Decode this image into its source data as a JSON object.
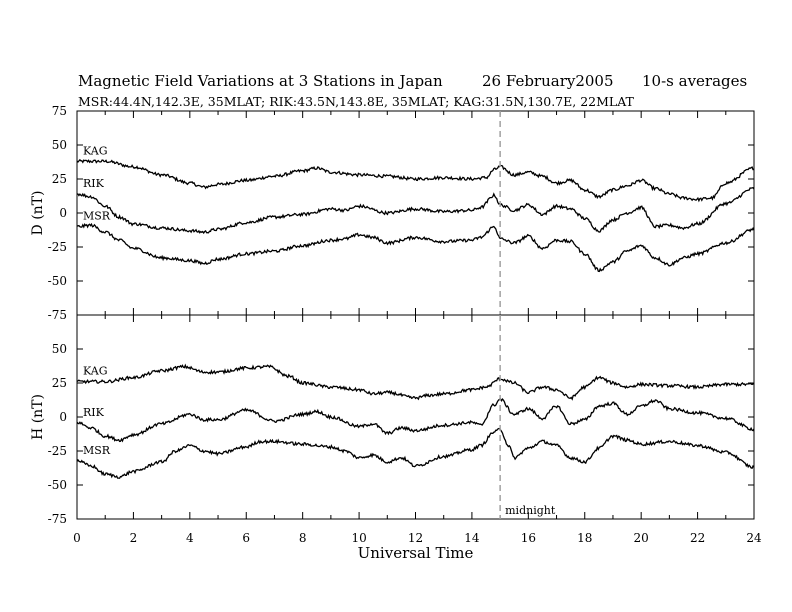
{
  "header": {
    "title": "Magnetic Field Variations at 3 Stations in Japan",
    "date": "26 February2005",
    "averaging": "10-s averages",
    "stations_line": "MSR:44.4N,142.3E, 35MLAT;  RIK:43.5N,143.8E, 35MLAT;  KAG:31.5N,130.7E, 22MLAT"
  },
  "chart_data": [
    {
      "type": "line",
      "panel": "D",
      "ylabel": "D (nT)",
      "ylim": [
        -75,
        75
      ],
      "yticks": [
        -75,
        -50,
        -25,
        0,
        25,
        50,
        75
      ],
      "xlim": [
        0,
        24
      ],
      "xticks": [
        0,
        2,
        4,
        6,
        8,
        10,
        12,
        14,
        16,
        18,
        20,
        22,
        24
      ],
      "series": [
        {
          "name": "KAG",
          "x": [
            0,
            1,
            2,
            3,
            4,
            4.5,
            5,
            6,
            7,
            8,
            8.5,
            9,
            10,
            11,
            12,
            13,
            14,
            14.5,
            14.8,
            15,
            15.5,
            16,
            16.5,
            17,
            17.5,
            18,
            18.5,
            19,
            19.5,
            20,
            20.5,
            21,
            21.5,
            22,
            22.5,
            23,
            24
          ],
          "y": [
            38,
            38,
            34,
            28,
            22,
            19,
            21,
            24,
            27,
            31,
            33,
            30,
            28,
            27,
            25,
            26,
            25,
            26,
            32,
            34,
            28,
            30,
            27,
            22,
            24,
            17,
            12,
            17,
            20,
            24,
            18,
            14,
            11,
            10,
            11,
            22,
            33
          ]
        },
        {
          "name": "RIK",
          "x": [
            0,
            0.5,
            1,
            1.5,
            2,
            3,
            4,
            4.5,
            5,
            6,
            7,
            8,
            9,
            9.5,
            10,
            11,
            12,
            13,
            14,
            14.3,
            14.8,
            15,
            15.5,
            16,
            16.5,
            17,
            17.5,
            18,
            18.5,
            19,
            19.5,
            20,
            20.5,
            21,
            21.5,
            22,
            23,
            24
          ],
          "y": [
            14,
            12,
            5,
            -3,
            -8,
            -11,
            -13,
            -14,
            -12,
            -7,
            -3,
            -1,
            3,
            2,
            5,
            0,
            3,
            1,
            2,
            4,
            13,
            6,
            2,
            6,
            -1,
            5,
            3,
            -4,
            -13,
            -5,
            0,
            4,
            -10,
            -9,
            -11,
            -8,
            7,
            18
          ]
        },
        {
          "name": "MSR",
          "x": [
            0,
            0.5,
            1,
            1.5,
            2,
            3,
            4,
            4.5,
            5,
            6,
            7,
            8,
            9,
            9.5,
            10,
            10.5,
            11,
            12,
            13,
            14,
            14.3,
            14.8,
            15,
            15.5,
            16,
            16.5,
            17,
            17.5,
            18,
            18.5,
            19,
            19.5,
            20,
            20.5,
            21,
            21.5,
            22,
            23,
            24
          ],
          "y": [
            -10,
            -9,
            -14,
            -20,
            -26,
            -33,
            -35,
            -37,
            -34,
            -30,
            -28,
            -24,
            -20,
            -19,
            -16,
            -18,
            -22,
            -18,
            -21,
            -20,
            -18,
            -10,
            -19,
            -22,
            -17,
            -26,
            -20,
            -21,
            -30,
            -42,
            -36,
            -28,
            -24,
            -33,
            -38,
            -33,
            -30,
            -22,
            -12
          ]
        }
      ]
    },
    {
      "type": "line",
      "panel": "H",
      "ylabel": "H (nT)",
      "ylim": [
        -75,
        75
      ],
      "yticks": [
        -75,
        -50,
        -25,
        0,
        25,
        50,
        75
      ],
      "xlim": [
        0,
        24
      ],
      "xticks": [
        0,
        2,
        4,
        6,
        8,
        10,
        12,
        14,
        16,
        18,
        20,
        22,
        24
      ],
      "xlabel": "Universal Time",
      "series": [
        {
          "name": "KAG",
          "x": [
            0,
            1,
            2,
            3,
            3.8,
            4.5,
            5,
            6,
            6.8,
            7.5,
            8,
            9,
            10,
            10.5,
            11,
            12,
            12.5,
            13,
            14,
            14.5,
            15,
            15.5,
            16,
            16.5,
            17,
            17.5,
            18,
            18.5,
            19,
            19.5,
            20,
            21,
            22,
            23,
            24
          ],
          "y": [
            26,
            26,
            29,
            34,
            37,
            33,
            33,
            36,
            37,
            30,
            25,
            22,
            20,
            17,
            18,
            14,
            16,
            17,
            20,
            22,
            28,
            25,
            18,
            22,
            20,
            14,
            22,
            29,
            25,
            22,
            24,
            23,
            22,
            24,
            24
          ]
        },
        {
          "name": "RIK",
          "x": [
            0,
            0.5,
            1,
            1.5,
            2,
            3,
            4,
            4.5,
            5,
            6,
            7,
            8,
            8.5,
            9,
            10,
            10.5,
            11,
            11.5,
            12,
            13,
            14,
            14.3,
            14.8,
            15,
            15.5,
            16,
            16.5,
            17,
            17.5,
            18,
            18.5,
            19,
            19.5,
            20,
            20.5,
            21,
            22,
            23,
            24
          ],
          "y": [
            -4,
            -8,
            -14,
            -17,
            -13,
            -5,
            2,
            -2,
            -2,
            5,
            -3,
            2,
            4,
            0,
            -7,
            -5,
            -12,
            -8,
            -10,
            -6,
            -4,
            -6,
            9,
            13,
            2,
            6,
            -1,
            8,
            -5,
            -2,
            8,
            10,
            2,
            8,
            12,
            6,
            3,
            -1,
            -9
          ]
        },
        {
          "name": "MSR",
          "x": [
            0,
            0.5,
            1,
            1.5,
            2,
            3,
            3.5,
            4,
            4.5,
            5,
            6,
            6.5,
            7,
            8,
            9,
            9.5,
            10,
            10.5,
            11,
            11.5,
            12,
            13,
            14,
            14.3,
            14.8,
            15,
            15.3,
            15.5,
            16,
            16.5,
            17,
            17.5,
            18,
            18.5,
            19,
            19.5,
            20,
            21,
            22,
            23,
            24
          ],
          "y": [
            -32,
            -36,
            -42,
            -44,
            -40,
            -33,
            -25,
            -21,
            -25,
            -27,
            -22,
            -18,
            -18,
            -20,
            -22,
            -25,
            -30,
            -28,
            -33,
            -30,
            -36,
            -29,
            -24,
            -21,
            -11,
            -9,
            -21,
            -30,
            -23,
            -18,
            -21,
            -30,
            -33,
            -23,
            -14,
            -17,
            -20,
            -18,
            -21,
            -26,
            -37
          ]
        }
      ]
    }
  ],
  "annotations": {
    "midnight_label": "midnight",
    "midnight_ut": 15
  },
  "colors": {
    "line": "#000000",
    "midnight_line": "#a0a0a0"
  }
}
